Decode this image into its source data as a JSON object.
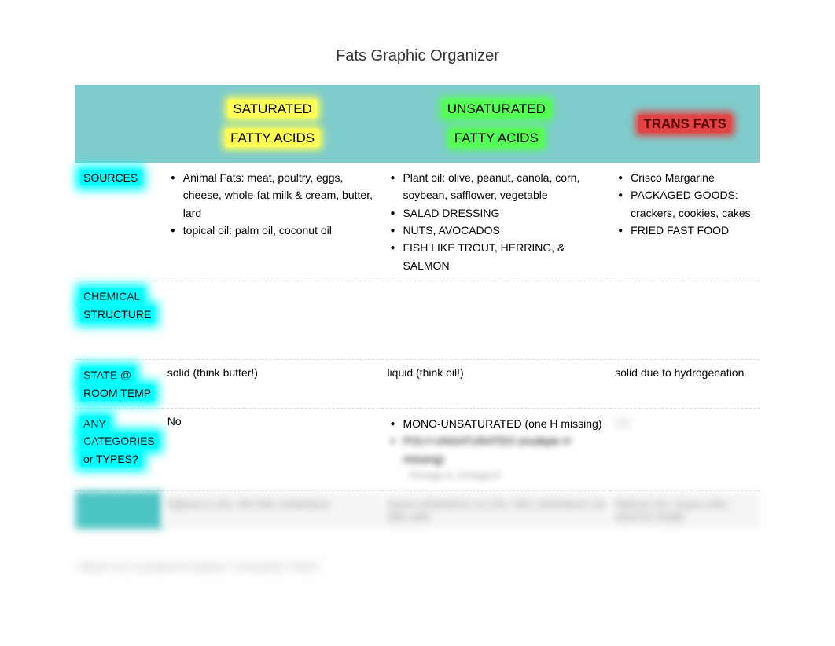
{
  "title": "Fats Graphic Organizer",
  "columns": {
    "saturated": {
      "line1": "SATURATED",
      "line2": "FATTY ACIDS",
      "highlight": "yellow"
    },
    "unsaturated": {
      "line1": "UNSATURATED",
      "line2": "FATTY ACIDS",
      "highlight": "green"
    },
    "trans": {
      "line1": "TRANS FATS",
      "highlight": "red"
    }
  },
  "rows": {
    "sources": {
      "label": "SOURCES",
      "saturated": [
        "Animal Fats: meat, poultry, eggs, cheese, whole-fat milk & cream, butter, lard",
        "topical oil: palm oil, coconut oil"
      ],
      "unsaturated": [
        "Plant oil:  olive, peanut, canola, corn, soybean, safflower, vegetable",
        "SALAD DRESSING",
        "NUTS, AVOCADOS",
        "FISH LIKE TROUT, HERRING, & SALMON"
      ],
      "trans": [
        "Crisco Margarine",
        "PACKAGED GOODS: crackers, cookies, cakes",
        "FRIED FAST FOOD"
      ]
    },
    "chemical": {
      "label_line1": "CHEMICAL",
      "label_line2": "STRUCTURE"
    },
    "state": {
      "label_line1": "STATE @",
      "label_line2": "ROOM TEMP",
      "saturated": "solid  (think butter!)",
      "unsaturated": "liquid   (think oil!)",
      "trans": "solid due to hydrogenation"
    },
    "categories": {
      "label_line1": "ANY",
      "label_line2": "CATEGORIES",
      "label_line3": "or TYPES?",
      "saturated": "No",
      "unsaturated_item1": "MONO-UNSATURATED (one H missing)",
      "unsaturated_blur1": "POLY-UNSATURATED (multiple H missing)",
      "unsaturated_blur2": "Omega-3, Omega-6"
    }
  },
  "blurred_bottom": {
    "sat": "highest in LDL; NO HDL cholesterol",
    "unsat": "lowers cholesterol; no LDL; HDL cholesterol; not fully solid",
    "trans": "highest LDL; lowers HDL; worst for health"
  },
  "footer_blur": "Which are considered healthy? Unhealthy? Why?",
  "colors": {
    "header_bg": "#7fcccc",
    "cyan_glow": "#00ffff",
    "yellow_hl": "#ffff55",
    "green_hl": "#55ff55",
    "red_hl": "#e04444"
  }
}
